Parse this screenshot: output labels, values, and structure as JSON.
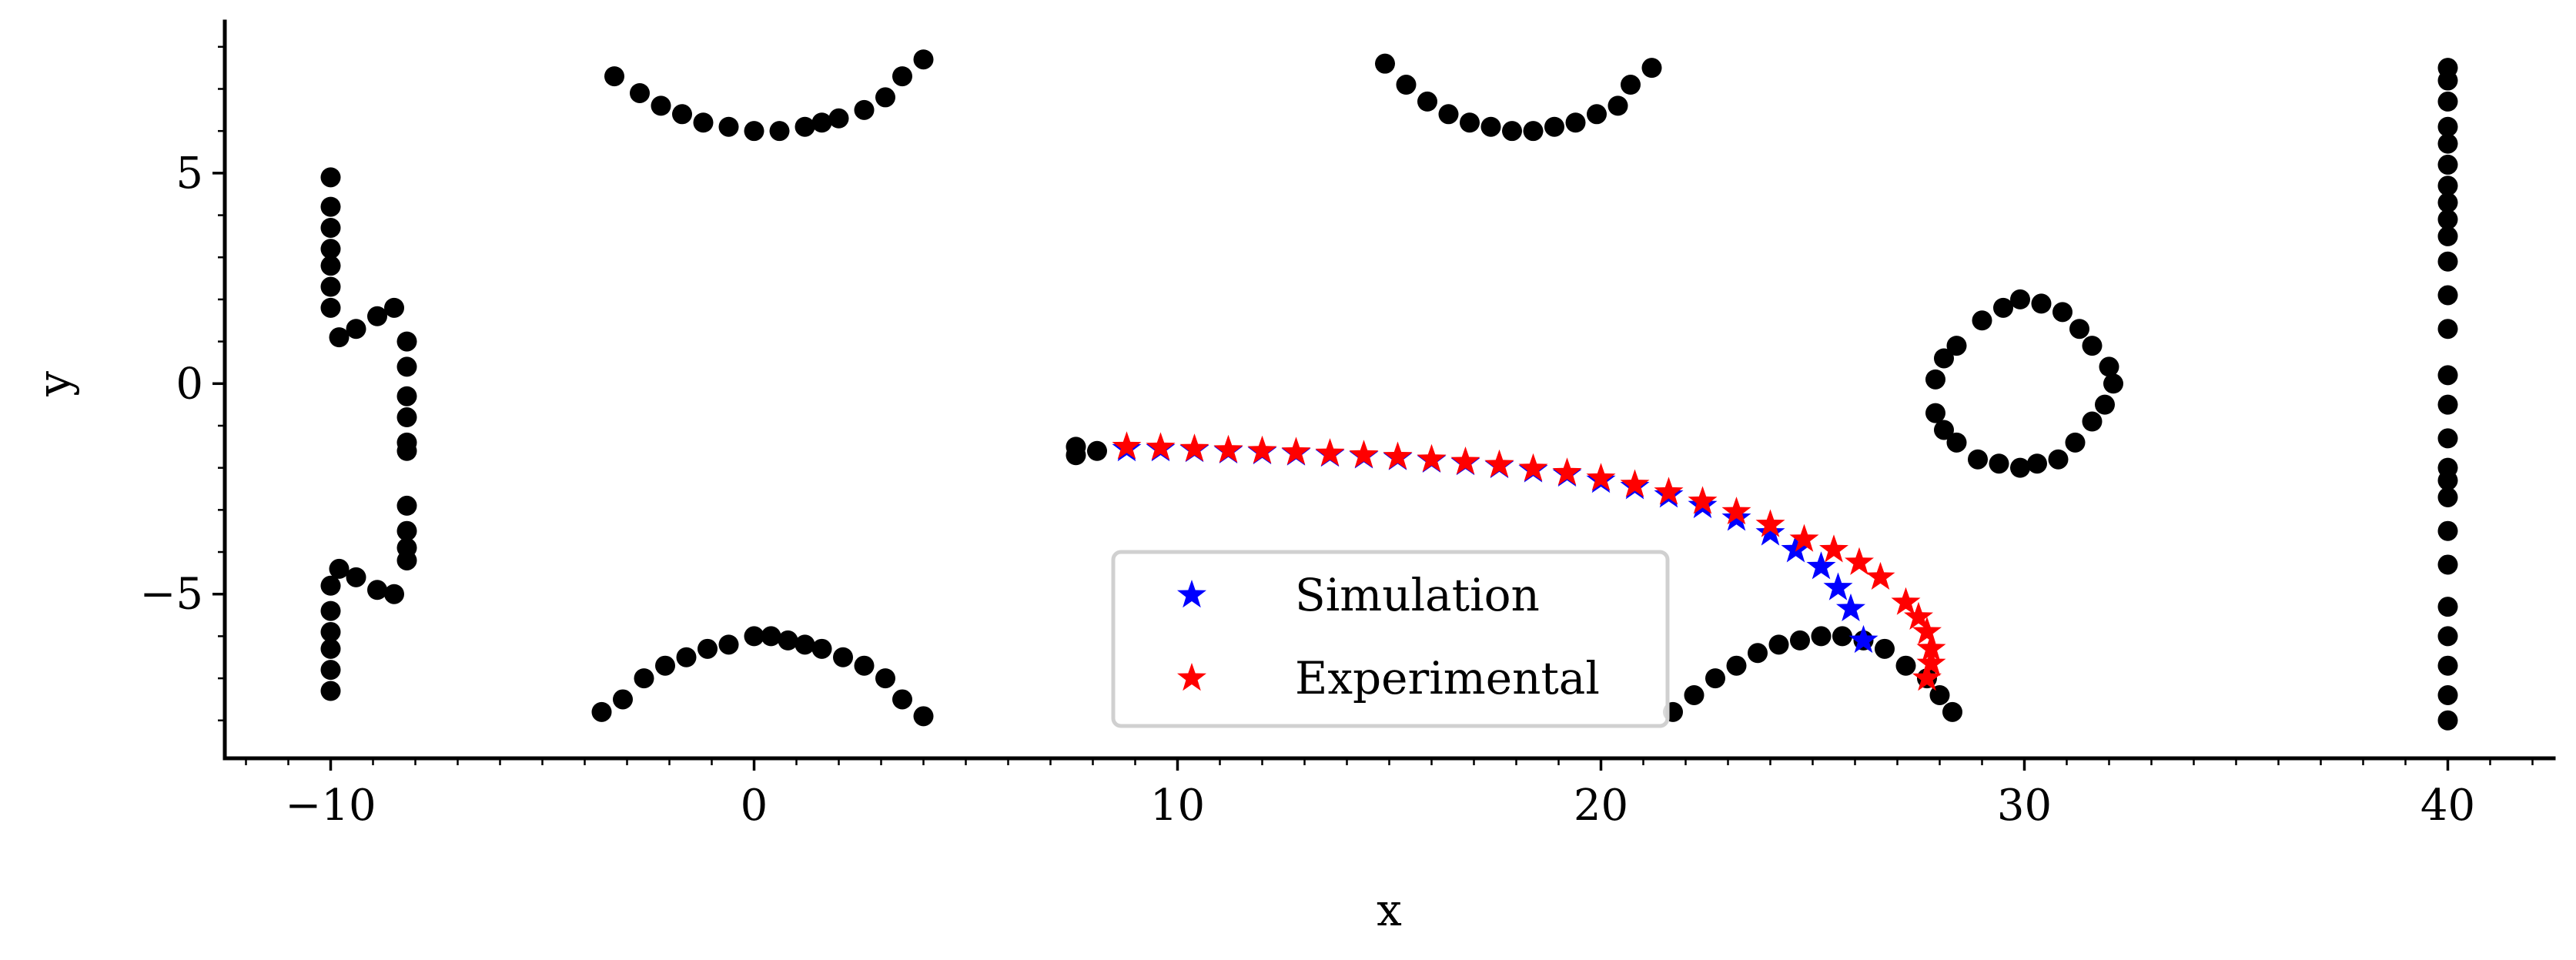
{
  "chart_data": {
    "type": "scatter",
    "title": "",
    "xlabel": "x",
    "ylabel": "y",
    "xlim": [
      -12.5,
      42.5
    ],
    "ylim": [
      -8.9,
      8.6
    ],
    "xticks": [
      -10,
      0,
      10,
      20,
      30,
      40
    ],
    "xtick_labels": [
      "−10",
      "0",
      "10",
      "20",
      "30",
      "40"
    ],
    "yticks": [
      -5,
      0,
      5
    ],
    "ytick_labels": [
      "−5",
      "0",
      "5"
    ],
    "x_minor_step": 1,
    "y_minor_step": 1,
    "grid": false,
    "legend_position": "lower-center",
    "obstacles": {
      "color": "#000000",
      "marker": "circle",
      "points": [
        [
          -10,
          4.9
        ],
        [
          -10,
          4.2
        ],
        [
          -10,
          3.7
        ],
        [
          -10,
          3.2
        ],
        [
          -10,
          2.8
        ],
        [
          -10,
          2.3
        ],
        [
          -10,
          1.8
        ],
        [
          -9.8,
          1.1
        ],
        [
          -9.4,
          1.3
        ],
        [
          -8.9,
          1.6
        ],
        [
          -8.5,
          1.8
        ],
        [
          -8.2,
          1.0
        ],
        [
          -8.2,
          0.4
        ],
        [
          -8.2,
          -0.3
        ],
        [
          -8.2,
          -0.8
        ],
        [
          -8.2,
          -1.4
        ],
        [
          -8.2,
          -1.6
        ],
        [
          -8.2,
          -2.9
        ],
        [
          -8.2,
          -3.5
        ],
        [
          -8.2,
          -3.9
        ],
        [
          -8.2,
          -4.2
        ],
        [
          -8.5,
          -5.0
        ],
        [
          -8.9,
          -4.9
        ],
        [
          -9.4,
          -4.6
        ],
        [
          -9.8,
          -4.4
        ],
        [
          -10,
          -4.8
        ],
        [
          -10,
          -5.4
        ],
        [
          -10,
          -5.9
        ],
        [
          -10,
          -6.3
        ],
        [
          -10,
          -6.8
        ],
        [
          -10,
          -7.3
        ],
        [
          -3.3,
          7.3
        ],
        [
          -2.7,
          6.9
        ],
        [
          -2.2,
          6.6
        ],
        [
          -1.7,
          6.4
        ],
        [
          -1.2,
          6.2
        ],
        [
          -0.6,
          6.1
        ],
        [
          0,
          6.0
        ],
        [
          0.6,
          6.0
        ],
        [
          1.2,
          6.1
        ],
        [
          1.6,
          6.2
        ],
        [
          2.0,
          6.3
        ],
        [
          2.6,
          6.5
        ],
        [
          3.1,
          6.8
        ],
        [
          3.5,
          7.3
        ],
        [
          4.0,
          7.7
        ],
        [
          -3.6,
          -7.8
        ],
        [
          -3.1,
          -7.5
        ],
        [
          -2.6,
          -7.0
        ],
        [
          -2.1,
          -6.7
        ],
        [
          -1.6,
          -6.5
        ],
        [
          -1.1,
          -6.3
        ],
        [
          -0.6,
          -6.2
        ],
        [
          0,
          -6.0
        ],
        [
          0.4,
          -6.0
        ],
        [
          0.8,
          -6.1
        ],
        [
          1.2,
          -6.2
        ],
        [
          1.6,
          -6.3
        ],
        [
          2.1,
          -6.5
        ],
        [
          2.6,
          -6.7
        ],
        [
          3.1,
          -7.0
        ],
        [
          3.5,
          -7.5
        ],
        [
          4.0,
          -7.9
        ],
        [
          14.9,
          7.6
        ],
        [
          15.4,
          7.1
        ],
        [
          15.9,
          6.7
        ],
        [
          16.4,
          6.4
        ],
        [
          16.9,
          6.2
        ],
        [
          17.4,
          6.1
        ],
        [
          17.9,
          6.0
        ],
        [
          18.4,
          6.0
        ],
        [
          18.9,
          6.1
        ],
        [
          19.4,
          6.2
        ],
        [
          19.9,
          6.4
        ],
        [
          20.4,
          6.6
        ],
        [
          20.7,
          7.1
        ],
        [
          21.2,
          7.5
        ],
        [
          21.7,
          -7.8
        ],
        [
          22.2,
          -7.4
        ],
        [
          22.7,
          -7.0
        ],
        [
          23.2,
          -6.7
        ],
        [
          23.7,
          -6.4
        ],
        [
          24.2,
          -6.2
        ],
        [
          24.7,
          -6.1
        ],
        [
          25.2,
          -6.0
        ],
        [
          25.7,
          -6.0
        ],
        [
          26.2,
          -6.1
        ],
        [
          26.7,
          -6.3
        ],
        [
          27.2,
          -6.7
        ],
        [
          27.7,
          -7.0
        ],
        [
          28.0,
          -7.4
        ],
        [
          28.3,
          -7.8
        ],
        [
          29.0,
          1.5
        ],
        [
          29.5,
          1.8
        ],
        [
          29.9,
          2.0
        ],
        [
          30.4,
          1.9
        ],
        [
          30.9,
          1.7
        ],
        [
          31.3,
          1.3
        ],
        [
          31.6,
          0.9
        ],
        [
          32.0,
          0.4
        ],
        [
          32.1,
          0.0
        ],
        [
          31.9,
          -0.5
        ],
        [
          31.6,
          -0.9
        ],
        [
          31.2,
          -1.4
        ],
        [
          30.8,
          -1.8
        ],
        [
          30.3,
          -1.9
        ],
        [
          29.9,
          -2.0
        ],
        [
          29.4,
          -1.9
        ],
        [
          28.9,
          -1.8
        ],
        [
          28.4,
          -1.4
        ],
        [
          28.1,
          -1.1
        ],
        [
          27.9,
          -0.7
        ],
        [
          27.9,
          0.1
        ],
        [
          28.1,
          0.6
        ],
        [
          28.4,
          0.9
        ],
        [
          40,
          7.5
        ],
        [
          40,
          7.2
        ],
        [
          40,
          6.7
        ],
        [
          40,
          6.1
        ],
        [
          40,
          5.7
        ],
        [
          40,
          5.2
        ],
        [
          40,
          4.7
        ],
        [
          40,
          4.3
        ],
        [
          40,
          3.9
        ],
        [
          40,
          3.5
        ],
        [
          40,
          2.9
        ],
        [
          40,
          2.1
        ],
        [
          40,
          1.3
        ],
        [
          40,
          0.2
        ],
        [
          40,
          -0.5
        ],
        [
          40,
          -1.3
        ],
        [
          40,
          -2.0
        ],
        [
          40,
          -2.3
        ],
        [
          40,
          -2.7
        ],
        [
          40,
          -3.5
        ],
        [
          40,
          -4.3
        ],
        [
          40,
          -5.3
        ],
        [
          40,
          -6.0
        ],
        [
          40,
          -6.7
        ],
        [
          40,
          -7.4
        ],
        [
          40,
          -8.0
        ],
        [
          7.6,
          -1.5
        ],
        [
          7.6,
          -1.7
        ],
        [
          8.1,
          -1.6
        ]
      ]
    },
    "series": [
      {
        "name": "Simulation",
        "color": "#0000ff",
        "marker": "star",
        "points": [
          [
            8.8,
            -1.55
          ],
          [
            9.6,
            -1.55
          ],
          [
            10.4,
            -1.57
          ],
          [
            11.2,
            -1.6
          ],
          [
            12.0,
            -1.62
          ],
          [
            12.8,
            -1.65
          ],
          [
            13.6,
            -1.68
          ],
          [
            14.4,
            -1.72
          ],
          [
            15.2,
            -1.76
          ],
          [
            16.0,
            -1.82
          ],
          [
            16.8,
            -1.88
          ],
          [
            17.6,
            -1.95
          ],
          [
            18.4,
            -2.05
          ],
          [
            19.2,
            -2.15
          ],
          [
            20.0,
            -2.3
          ],
          [
            20.8,
            -2.45
          ],
          [
            21.6,
            -2.65
          ],
          [
            22.4,
            -2.9
          ],
          [
            23.2,
            -3.2
          ],
          [
            24.0,
            -3.55
          ],
          [
            24.6,
            -3.95
          ],
          [
            25.2,
            -4.35
          ],
          [
            25.6,
            -4.85
          ],
          [
            25.9,
            -5.35
          ],
          [
            26.2,
            -6.1
          ]
        ]
      },
      {
        "name": "Experimental",
        "color": "#ff0000",
        "marker": "star",
        "points": [
          [
            8.8,
            -1.5
          ],
          [
            9.6,
            -1.52
          ],
          [
            10.4,
            -1.55
          ],
          [
            11.2,
            -1.58
          ],
          [
            12.0,
            -1.6
          ],
          [
            12.8,
            -1.63
          ],
          [
            13.6,
            -1.66
          ],
          [
            14.4,
            -1.7
          ],
          [
            15.2,
            -1.74
          ],
          [
            16.0,
            -1.8
          ],
          [
            16.8,
            -1.86
          ],
          [
            17.6,
            -1.93
          ],
          [
            18.4,
            -2.02
          ],
          [
            19.2,
            -2.12
          ],
          [
            20.0,
            -2.25
          ],
          [
            20.8,
            -2.4
          ],
          [
            21.6,
            -2.58
          ],
          [
            22.4,
            -2.8
          ],
          [
            23.2,
            -3.05
          ],
          [
            24.0,
            -3.35
          ],
          [
            24.8,
            -3.7
          ],
          [
            25.5,
            -3.95
          ],
          [
            26.1,
            -4.25
          ],
          [
            26.6,
            -4.6
          ],
          [
            27.2,
            -5.2
          ],
          [
            27.5,
            -5.55
          ],
          [
            27.7,
            -5.9
          ],
          [
            27.8,
            -6.3
          ],
          [
            27.8,
            -6.65
          ],
          [
            27.7,
            -7.0
          ]
        ]
      }
    ]
  }
}
